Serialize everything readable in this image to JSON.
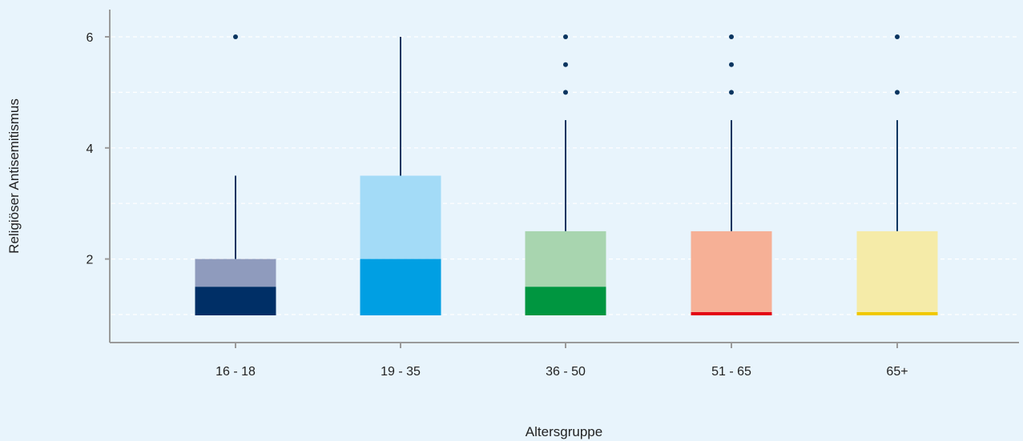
{
  "chart_data": {
    "type": "boxplot",
    "xlabel": "Altersgruppe",
    "ylabel": "Religiöser Antisemitismus",
    "ylim": [
      0.5,
      6.5
    ],
    "yticks": [
      2,
      4,
      6
    ],
    "grid": true,
    "grid_y": [
      1,
      2,
      3,
      4,
      5,
      6
    ],
    "categories": [
      "16 - 18",
      "19 - 35",
      "36 - 50",
      "51 - 65",
      "65+"
    ],
    "boxes": [
      {
        "category": "16 - 18",
        "q1": 1,
        "median": 1.5,
        "q3": 2,
        "whisker_low": 1,
        "whisker_high": 3.5,
        "outliers": [
          6
        ],
        "color_upper": "#8f9bbd",
        "color_lower": "#002f66"
      },
      {
        "category": "19 - 35",
        "q1": 1,
        "median": 2,
        "q3": 3.5,
        "whisker_low": 1,
        "whisker_high": 6,
        "outliers": [],
        "color_upper": "#a3dbf7",
        "color_lower": "#009fe3"
      },
      {
        "category": "36 - 50",
        "q1": 1,
        "median": 1.5,
        "q3": 2.5,
        "whisker_low": 1,
        "whisker_high": 4.5,
        "outliers": [
          5,
          5.5,
          6
        ],
        "color_upper": "#a8d5af",
        "color_lower": "#009640"
      },
      {
        "category": "51 - 65",
        "q1": 1,
        "median": 1,
        "q3": 2.5,
        "whisker_low": 1,
        "whisker_high": 4.5,
        "outliers": [
          5,
          5.5,
          6
        ],
        "color_upper": "#f6b096",
        "color_lower": "#e30613"
      },
      {
        "category": "65+",
        "q1": 1,
        "median": 1,
        "q3": 2.5,
        "whisker_low": 1,
        "whisker_high": 4.5,
        "outliers": [
          5,
          6
        ],
        "color_upper": "#f5eba8",
        "color_lower": "#f0c800"
      }
    ],
    "colors": {
      "axis": "#9a9a9a",
      "whisker": "#0a3560",
      "outlier": "#0a3560",
      "grid": "#ffffff"
    }
  }
}
